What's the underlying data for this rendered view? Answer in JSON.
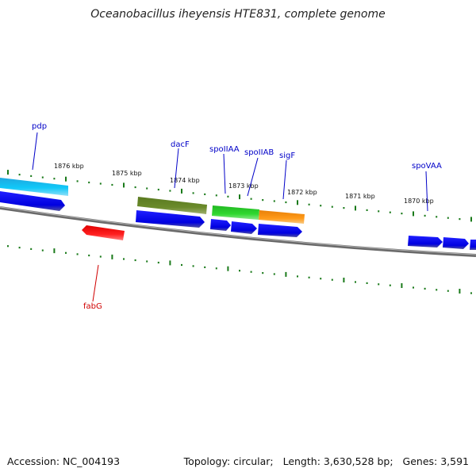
{
  "title": "Oceanobacillus iheyensis HTE831, complete genome",
  "footer": {
    "accession": "Accession: NC_004193",
    "topology": "Topology: circular;",
    "length": "Length: 3,630,528 bp;",
    "genes": "Genes: 3,591"
  },
  "kbp_labels": [
    {
      "id": "k1876",
      "text": "1876 kbp"
    },
    {
      "id": "k1875",
      "text": "1875 kbp"
    },
    {
      "id": "k1874",
      "text": "1874 kbp"
    },
    {
      "id": "k1873",
      "text": "1873 kbp"
    },
    {
      "id": "k1872",
      "text": "1872 kbp"
    },
    {
      "id": "k1871",
      "text": "1871 kbp"
    },
    {
      "id": "k1870",
      "text": "1870 kbp"
    }
  ],
  "gene_labels": [
    {
      "id": "pdp",
      "text": "pdp",
      "color": "#0000c8"
    },
    {
      "id": "dacF",
      "text": "dacF",
      "color": "#0000c8"
    },
    {
      "id": "spoIIAA",
      "text": "spoIIAA",
      "color": "#0000c8"
    },
    {
      "id": "spoIIAB",
      "text": "spoIIAB",
      "color": "#0000c8"
    },
    {
      "id": "sigF",
      "text": "sigF",
      "color": "#0000c8"
    },
    {
      "id": "spoVAA",
      "text": "spoVAA",
      "color": "#0000c8"
    },
    {
      "id": "fabG",
      "text": "fabG",
      "color": "#d00000"
    }
  ],
  "colors": {
    "backbone": "#7a7a7a",
    "tick": "#1a7a1a",
    "cds_blue": "#0a0ae6",
    "cyan": "#1ab4e6",
    "olive": "#5f7f22",
    "green": "#28c828",
    "orange": "#f08c10",
    "red": "#e61010"
  }
}
